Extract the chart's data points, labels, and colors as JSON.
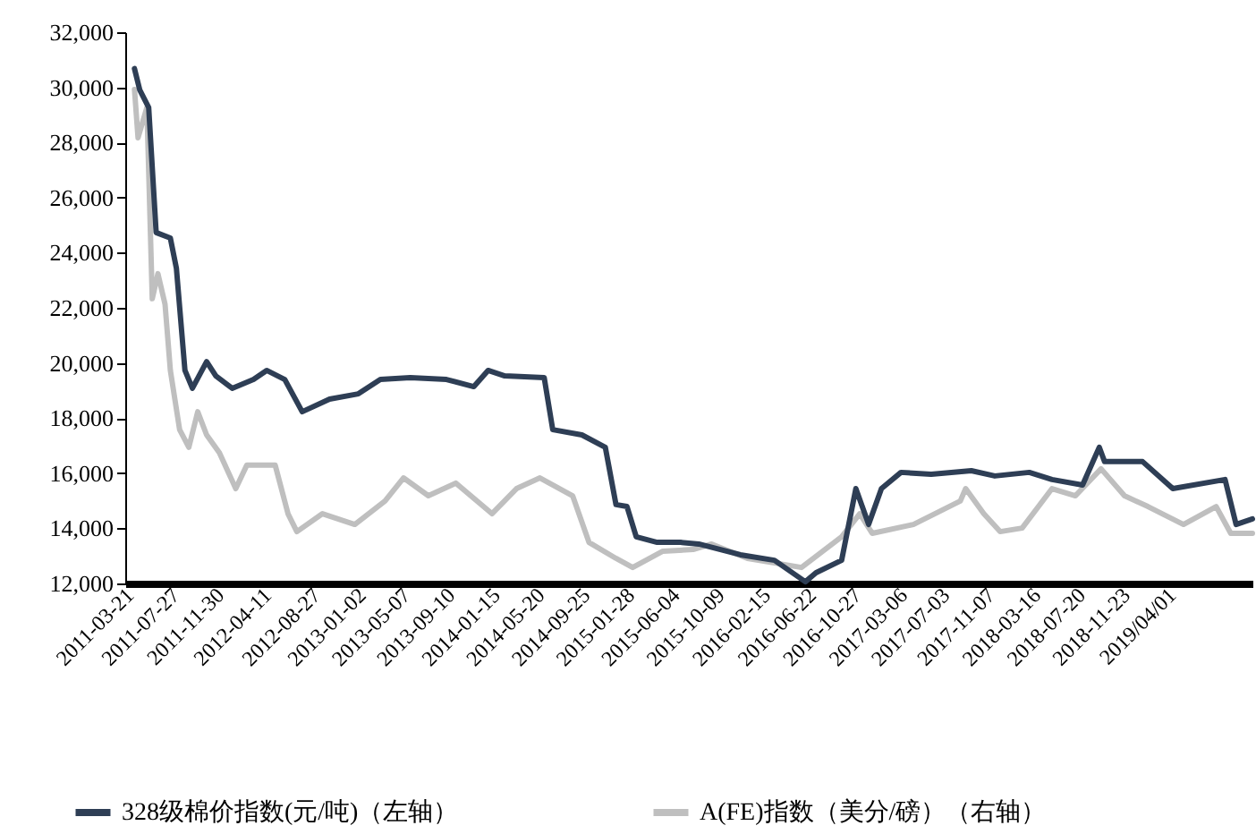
{
  "chart_data": {
    "type": "line",
    "legend": "bottom",
    "xlim": [
      "2011-03-10",
      "2019-11-15"
    ],
    "xticks": [
      {
        "value": "2011-03-21",
        "label": "2011-03-21"
      },
      {
        "value": "2011-07-27",
        "label": "2011-07-27"
      },
      {
        "value": "2011-11-30",
        "label": "2011-11-30"
      },
      {
        "value": "2012-04-11",
        "label": "2012-04-11"
      },
      {
        "value": "2012-08-27",
        "label": "2012-08-27"
      },
      {
        "value": "2013-01-02",
        "label": "2013-01-02"
      },
      {
        "value": "2013-05-07",
        "label": "2013-05-07"
      },
      {
        "value": "2013-09-10",
        "label": "2013-09-10"
      },
      {
        "value": "2014-01-15",
        "label": "2014-01-15"
      },
      {
        "value": "2014-05-20",
        "label": "2014-05-20"
      },
      {
        "value": "2014-09-25",
        "label": "2014-09-25"
      },
      {
        "value": "2015-01-28",
        "label": "2015-01-28"
      },
      {
        "value": "2015-06-04",
        "label": "2015-06-04"
      },
      {
        "value": "2015-10-09",
        "label": "2015-10-09"
      },
      {
        "value": "2016-02-15",
        "label": "2016-02-15"
      },
      {
        "value": "2016-06-22",
        "label": "2016-06-22"
      },
      {
        "value": "2016-10-27",
        "label": "2016-10-27"
      },
      {
        "value": "2017-03-06",
        "label": "2017-03-06"
      },
      {
        "value": "2017-07-03",
        "label": "2017-07-03"
      },
      {
        "value": "2017-11-07",
        "label": "2017-11-07"
      },
      {
        "value": "2018-03-16",
        "label": "2018-03-16"
      },
      {
        "value": "2018-07-20",
        "label": "2018-07-20"
      },
      {
        "value": "2018-11-23",
        "label": "2018-11-23"
      },
      {
        "value": "2019-04-01",
        "label": "2019/04/01"
      }
    ],
    "ylim": [
      12000,
      32000
    ],
    "yticks": [
      {
        "value": 12000,
        "label": "12,000"
      },
      {
        "value": 14000,
        "label": "14,000"
      },
      {
        "value": 16000,
        "label": "16,000"
      },
      {
        "value": 18000,
        "label": "18,000"
      },
      {
        "value": 20000,
        "label": "20,000"
      },
      {
        "value": 22000,
        "label": "22,000"
      },
      {
        "value": 24000,
        "label": "24,000"
      },
      {
        "value": 26000,
        "label": "26,000"
      },
      {
        "value": 28000,
        "label": "28,000"
      },
      {
        "value": 30000,
        "label": "30,000"
      },
      {
        "value": 32000,
        "label": "32,000"
      }
    ],
    "series": [
      {
        "name": "328级棉价指数(元/吨)（左轴）",
        "color": "#2e3e55",
        "x": [
          "2011-04-05",
          "2011-04-20",
          "2011-05-15",
          "2011-06-05",
          "2011-07-15",
          "2011-08-01",
          "2011-08-25",
          "2011-09-15",
          "2011-10-25",
          "2011-11-20",
          "2012-01-05",
          "2012-03-05",
          "2012-04-11",
          "2012-06-01",
          "2012-07-20",
          "2012-10-05",
          "2012-12-25",
          "2013-02-25",
          "2013-05-20",
          "2013-08-30",
          "2013-11-15",
          "2013-12-25",
          "2014-02-10",
          "2014-06-01",
          "2014-06-25",
          "2014-09-15",
          "2014-11-20",
          "2014-12-20",
          "2015-01-20",
          "2015-02-15",
          "2015-04-15",
          "2015-06-20",
          "2015-08-10",
          "2015-12-05",
          "2016-03-10",
          "2016-06-05",
          "2016-07-05",
          "2016-09-15",
          "2016-10-25",
          "2016-11-30",
          "2017-01-05",
          "2017-03-01",
          "2017-05-25",
          "2017-09-15",
          "2017-11-20",
          "2018-02-25",
          "2018-04-30",
          "2018-07-25",
          "2018-09-10",
          "2018-09-25",
          "2019-01-10",
          "2019-04-05",
          "2019-08-30",
          "2019-09-30",
          "2019-11-15"
        ],
        "values": [
          30680,
          29900,
          29270,
          24730,
          24530,
          23430,
          19730,
          19080,
          20050,
          19530,
          19080,
          19400,
          19730,
          19400,
          18230,
          18690,
          18880,
          19400,
          19470,
          19400,
          19140,
          19730,
          19530,
          19470,
          17580,
          17390,
          16940,
          14860,
          14790,
          13690,
          13490,
          13490,
          13430,
          13040,
          12840,
          12060,
          12390,
          12840,
          15440,
          14140,
          15440,
          16030,
          15960,
          16090,
          15900,
          16030,
          15770,
          15570,
          16940,
          16420,
          16420,
          15440,
          15770,
          14140,
          14340
        ]
      },
      {
        "name": "A(FE)指数（美分/磅）（右轴）",
        "color": "#bfbfbf",
        "x": [
          "2011-04-05",
          "2011-04-15",
          "2011-05-10",
          "2011-05-25",
          "2011-06-10",
          "2011-06-30",
          "2011-07-15",
          "2011-08-10",
          "2011-09-05",
          "2011-09-30",
          "2011-10-25",
          "2011-11-30",
          "2012-01-15",
          "2012-02-15",
          "2012-05-05",
          "2012-06-10",
          "2012-07-05",
          "2012-09-15",
          "2012-12-15",
          "2013-03-10",
          "2013-05-01",
          "2013-07-10",
          "2013-09-25",
          "2014-01-05",
          "2014-03-15",
          "2014-05-20",
          "2014-08-20",
          "2014-10-05",
          "2014-12-20",
          "2015-02-05",
          "2015-05-01",
          "2015-07-25",
          "2015-09-15",
          "2015-12-25",
          "2016-05-25",
          "2016-09-15",
          "2016-11-05",
          "2016-12-10",
          "2017-04-05",
          "2017-08-15",
          "2017-08-30",
          "2017-10-20",
          "2017-12-05",
          "2018-02-05",
          "2018-04-30",
          "2018-07-05",
          "2018-09-15",
          "2018-11-20",
          "2019-01-25",
          "2019-05-05",
          "2019-08-05",
          "2019-09-15",
          "2019-11-15"
        ],
        "values": [
          29920,
          28170,
          29270,
          22330,
          23240,
          22130,
          19730,
          17580,
          16940,
          18230,
          17390,
          16740,
          15440,
          16290,
          16290,
          14530,
          13880,
          14530,
          14140,
          14990,
          15830,
          15180,
          15640,
          14530,
          15440,
          15830,
          15180,
          13490,
          12910,
          12580,
          13170,
          13230,
          13430,
          12910,
          12580,
          13690,
          14530,
          13820,
          14140,
          14990,
          15440,
          14530,
          13880,
          14010,
          15440,
          15180,
          16160,
          15180,
          14790,
          14140,
          14790,
          13820,
          13820
        ]
      }
    ]
  }
}
